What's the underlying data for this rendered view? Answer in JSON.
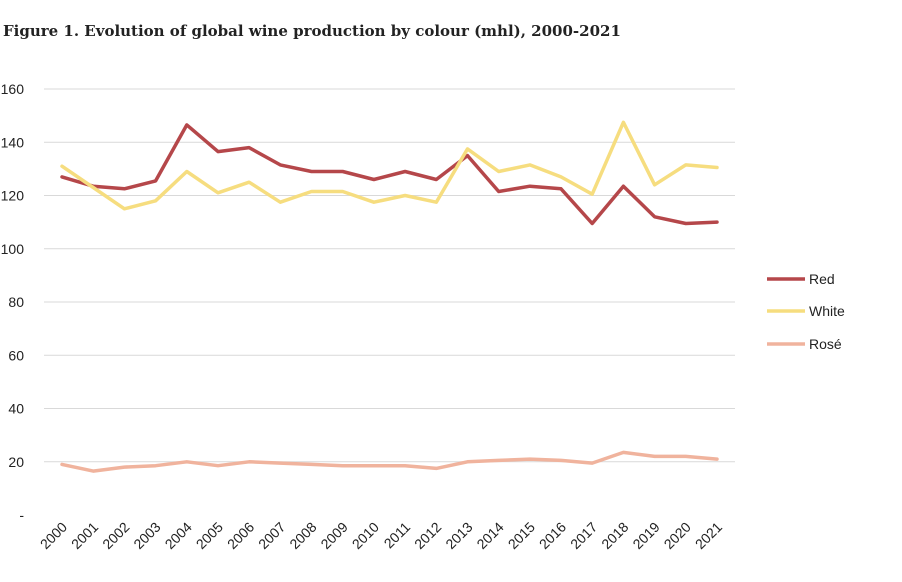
{
  "chart_data": {
    "type": "line",
    "title": "Figure 1. Evolution of global wine production by colour (mhl), 2000-2021",
    "x": [
      "2000",
      "2001",
      "2002",
      "2003",
      "2004",
      "2005",
      "2006",
      "2007",
      "2008",
      "2009",
      "2010",
      "2011",
      "2012",
      "2013",
      "2014",
      "2015",
      "2016",
      "2017",
      "2018",
      "2019",
      "2020",
      "2021"
    ],
    "y_ticks": [
      "-",
      "20",
      "40",
      "60",
      "80",
      "100",
      "120",
      "140",
      "160"
    ],
    "ylim": [
      0,
      160
    ],
    "grid": true,
    "legend_position": "right",
    "series": [
      {
        "name": "Red",
        "color": "#b5474a",
        "values": [
          127,
          123.5,
          122.5,
          125.5,
          146.5,
          136.5,
          138,
          131.5,
          129,
          129,
          126,
          129,
          126,
          135,
          121.5,
          123.5,
          122.5,
          109.5,
          123.5,
          112,
          109.5,
          110
        ]
      },
      {
        "name": "White",
        "color": "#f6dd7f",
        "values": [
          131,
          123,
          115,
          118,
          129,
          121,
          125,
          117.5,
          121.5,
          121.5,
          117.5,
          120,
          117.5,
          137.5,
          129,
          131.5,
          127,
          120.5,
          147.5,
          124,
          131.5,
          130.5
        ]
      },
      {
        "name": "Rosé",
        "color": "#f0b39d",
        "values": [
          19,
          16.5,
          18,
          18.5,
          20,
          18.5,
          20,
          19.5,
          19,
          18.5,
          18.5,
          18.5,
          17.5,
          20,
          20.5,
          21,
          20.5,
          19.5,
          23.5,
          22,
          22,
          21
        ]
      }
    ]
  }
}
